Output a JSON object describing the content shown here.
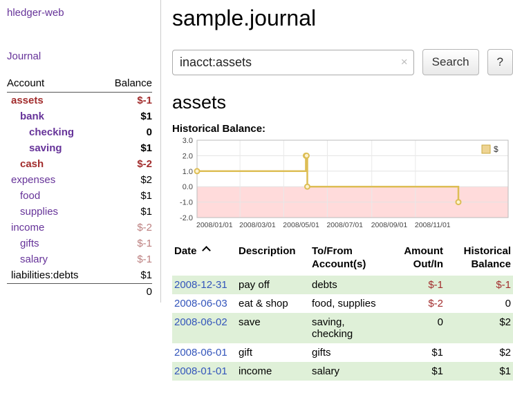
{
  "colors": {
    "link_purple": "#663399",
    "link_blue": "#3355bb",
    "negative": "#a22d2d",
    "negative_muted": "#bc7f7f",
    "row_highlight": "#dff0d8",
    "chart_line": "#ddbe55",
    "chart_negative_fill": "#ffdbdb",
    "text": "#000000"
  },
  "sidebar": {
    "app_title": "hledger-web",
    "journal_link": "Journal",
    "accounts_table": {
      "headers": {
        "account": "Account",
        "balance": "Balance"
      },
      "rows": [
        {
          "name": "assets",
          "indent": 0,
          "bold": true,
          "name_negative": true,
          "balance": "$-1",
          "balance_negative": true
        },
        {
          "name": "bank",
          "indent": 1,
          "bold": true,
          "balance": "$1"
        },
        {
          "name": "checking",
          "indent": 2,
          "bold": true,
          "balance": "0"
        },
        {
          "name": "saving",
          "indent": 2,
          "bold": true,
          "balance": "$1"
        },
        {
          "name": "cash",
          "indent": 1,
          "bold": true,
          "name_negative": true,
          "balance": "$-2",
          "balance_negative": true
        },
        {
          "name": "expenses",
          "indent": 0,
          "balance": "$2"
        },
        {
          "name": "food",
          "indent": 1,
          "balance": "$1"
        },
        {
          "name": "supplies",
          "indent": 1,
          "balance": "$1"
        },
        {
          "name": "income",
          "indent": 0,
          "balance": "$-2",
          "balance_negative": true
        },
        {
          "name": "gifts",
          "indent": 1,
          "balance": "$-1",
          "balance_negative": true
        },
        {
          "name": "salary",
          "indent": 1,
          "balance": "$-1",
          "balance_negative": true
        },
        {
          "name": "liabilities:debts",
          "indent": 0,
          "name_plain": true,
          "balance": "$1"
        }
      ],
      "total": "0"
    }
  },
  "main": {
    "title": "sample.journal",
    "search": {
      "value": "inacct:assets",
      "clear_icon": "×",
      "search_button": "Search",
      "help_button": "?"
    },
    "register": {
      "heading": "assets",
      "chart_title": "Historical Balance:",
      "table": {
        "headers": {
          "date": "Date",
          "description": "Description",
          "account_line1": "To/From",
          "account_line2": "Account(s)",
          "amount_line1": "Amount",
          "amount_line2": "Out/In",
          "balance_line1": "Historical",
          "balance_line2": "Balance"
        },
        "rows": [
          {
            "date": "2008-12-31",
            "description": "pay off",
            "accounts": "debts",
            "amount": "$-1",
            "amount_negative": true,
            "balance": "$-1",
            "balance_negative": true,
            "highlight": true
          },
          {
            "date": "2008-06-03",
            "description": "eat & shop",
            "accounts": "food, supplies",
            "amount": "$-2",
            "amount_negative": true,
            "balance": "0",
            "highlight": false
          },
          {
            "date": "2008-06-02",
            "description": "save",
            "accounts": "saving, checking",
            "amount": "0",
            "balance": "$2",
            "highlight": true
          },
          {
            "date": "2008-06-01",
            "description": "gift",
            "accounts": "gifts",
            "amount": "$1",
            "balance": "$2",
            "highlight": false
          },
          {
            "date": "2008-01-01",
            "description": "income",
            "accounts": "salary",
            "amount": "$1",
            "balance": "$1",
            "highlight": true
          }
        ]
      }
    }
  },
  "chart_data": {
    "type": "line",
    "step": true,
    "title": "Historical Balance",
    "legend": {
      "label": "$",
      "position": "top-right"
    },
    "x_range": [
      "2008-01-01",
      "2008-12-31"
    ],
    "ylim": [
      -2,
      3
    ],
    "ytick_labels": [
      "3.0",
      "2.0",
      "1.0",
      "0.0",
      "-1.0",
      "-2.0"
    ],
    "xtick_labels": [
      "2008/01/01",
      "2008/03/01",
      "2008/05/01",
      "2008/07/01",
      "2008/09/01",
      "2008/11/01"
    ],
    "grid": true,
    "series": [
      {
        "name": "$",
        "points": [
          {
            "x": "2008-01-01",
            "y": 1
          },
          {
            "x": "2008-06-01",
            "y": 2
          },
          {
            "x": "2008-06-02",
            "y": 2
          },
          {
            "x": "2008-06-03",
            "y": 0
          },
          {
            "x": "2008-12-31",
            "y": -1
          }
        ]
      }
    ]
  }
}
